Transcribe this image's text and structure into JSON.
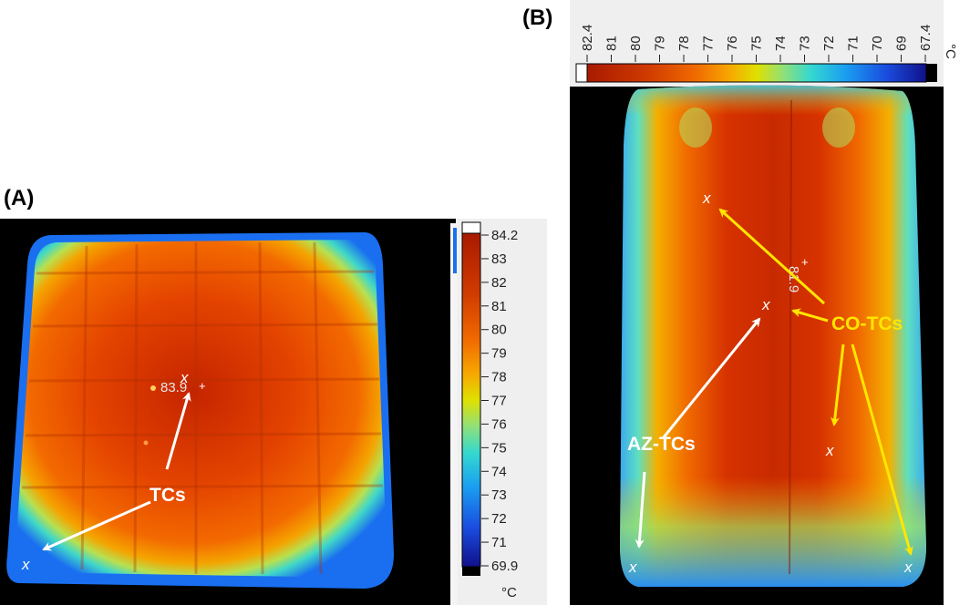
{
  "panel_a": {
    "label": "(A)",
    "scale_ticks": [
      "84.2",
      "83",
      "82",
      "81",
      "80",
      "79",
      "78",
      "77",
      "76",
      "75",
      "74",
      "73",
      "72",
      "71",
      "69.9"
    ],
    "unit": "°C",
    "spot_temp": "83.9",
    "tc_label": "TCs",
    "x_marks": [
      "x",
      "x"
    ]
  },
  "panel_b": {
    "label": "(B)",
    "scale_ticks": [
      "82.4",
      "81",
      "80",
      "79",
      "78",
      "77",
      "76",
      "75",
      "74",
      "73",
      "72",
      "71",
      "70",
      "69",
      "67.4"
    ],
    "unit": "°C",
    "spot_temp": "81.9",
    "az_label": "AZ-TCs",
    "co_label": "CO-TCs",
    "x_marks": [
      "x",
      "x",
      "x",
      "x",
      "x"
    ]
  },
  "colors": {
    "arrow_white": "#ffffff",
    "arrow_yellow": "#ffe600",
    "background": "#000000"
  }
}
